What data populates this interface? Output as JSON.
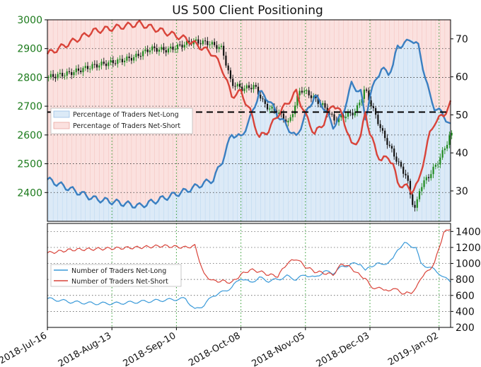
{
  "chart_data": [
    {
      "type": "line",
      "title": "US 500 Client Positioning",
      "price_axis": {
        "ylim": [
          2300,
          3000
        ],
        "ticks": [
          2400,
          2500,
          2600,
          2700,
          2800,
          2900,
          3000
        ],
        "color": "#1b7a1b"
      },
      "pct_axis": {
        "ylim": [
          22,
          75
        ],
        "ticks": [
          30,
          40,
          50,
          60,
          70
        ]
      },
      "reference_line": 50,
      "legend": {
        "placement": "center-left",
        "entries": [
          "Percentage of Traders Net-Long",
          "Percentage of Traders Net-Short"
        ]
      },
      "colors": {
        "net_long": "#3a7fc1",
        "net_short": "#d9443a",
        "long_fill": "#dceaf7",
        "short_fill": "#fbe1df",
        "candle_up": "#1f8a1f",
        "candle_down": "#111111",
        "grid": "#2e9a2e"
      },
      "price_range_days": [
        0,
        175
      ],
      "price_anchors": [
        [
          0,
          2800
        ],
        [
          10,
          2815
        ],
        [
          20,
          2840
        ],
        [
          30,
          2855
        ],
        [
          38,
          2870
        ],
        [
          45,
          2900
        ],
        [
          52,
          2895
        ],
        [
          58,
          2910
        ],
        [
          63,
          2925
        ],
        [
          70,
          2920
        ],
        [
          76,
          2900
        ],
        [
          80,
          2780
        ],
        [
          85,
          2760
        ],
        [
          90,
          2770
        ],
        [
          95,
          2700
        ],
        [
          100,
          2680
        ],
        [
          105,
          2640
        ],
        [
          110,
          2760
        ],
        [
          114,
          2740
        ],
        [
          120,
          2700
        ],
        [
          125,
          2650
        ],
        [
          130,
          2670
        ],
        [
          134,
          2680
        ],
        [
          138,
          2760
        ],
        [
          142,
          2680
        ],
        [
          146,
          2600
        ],
        [
          150,
          2540
        ],
        [
          154,
          2480
        ],
        [
          156,
          2460
        ],
        [
          158,
          2380
        ],
        [
          160,
          2340
        ],
        [
          162,
          2420
        ],
        [
          166,
          2460
        ],
        [
          170,
          2510
        ],
        [
          173,
          2560
        ],
        [
          175,
          2600
        ]
      ],
      "long_pct_anchors": [
        [
          0,
          33
        ],
        [
          20,
          28
        ],
        [
          40,
          26
        ],
        [
          60,
          30
        ],
        [
          72,
          33
        ],
        [
          76,
          38
        ],
        [
          80,
          45
        ],
        [
          84,
          44
        ],
        [
          88,
          49
        ],
        [
          92,
          56
        ],
        [
          96,
          54
        ],
        [
          100,
          50
        ],
        [
          104,
          47
        ],
        [
          108,
          44
        ],
        [
          112,
          50
        ],
        [
          116,
          55
        ],
        [
          120,
          52
        ],
        [
          124,
          47
        ],
        [
          128,
          50
        ],
        [
          132,
          58
        ],
        [
          136,
          56
        ],
        [
          138,
          49
        ],
        [
          140,
          55
        ],
        [
          143,
          60
        ],
        [
          145,
          62
        ],
        [
          148,
          61
        ],
        [
          150,
          63
        ],
        [
          152,
          68
        ],
        [
          156,
          69
        ],
        [
          158,
          70
        ],
        [
          161,
          68
        ],
        [
          164,
          60
        ],
        [
          166,
          55
        ],
        [
          168,
          52
        ],
        [
          172,
          50
        ],
        [
          175,
          47
        ]
      ],
      "short_pct_anchors": [
        [
          0,
          66
        ],
        [
          20,
          72
        ],
        [
          40,
          74
        ],
        [
          60,
          70
        ],
        [
          72,
          66
        ],
        [
          76,
          62
        ],
        [
          80,
          55
        ],
        [
          84,
          56
        ],
        [
          88,
          51
        ],
        [
          92,
          44
        ],
        [
          96,
          46
        ],
        [
          100,
          50
        ],
        [
          104,
          53
        ],
        [
          108,
          56
        ],
        [
          112,
          50
        ],
        [
          116,
          45
        ],
        [
          120,
          48
        ],
        [
          124,
          53
        ],
        [
          128,
          50
        ],
        [
          132,
          42
        ],
        [
          136,
          44
        ],
        [
          138,
          51
        ],
        [
          140,
          45
        ],
        [
          143,
          40
        ],
        [
          145,
          38
        ],
        [
          148,
          39
        ],
        [
          150,
          37
        ],
        [
          152,
          32
        ],
        [
          156,
          31
        ],
        [
          158,
          30
        ],
        [
          161,
          32
        ],
        [
          164,
          40
        ],
        [
          166,
          45
        ],
        [
          168,
          48
        ],
        [
          172,
          50
        ],
        [
          175,
          53
        ]
      ]
    },
    {
      "type": "line",
      "ylim": [
        200,
        1500
      ],
      "y_ticks": [
        200,
        400,
        600,
        800,
        1000,
        1200,
        1400
      ],
      "x_ticks": [
        "2018-Jul-16",
        "2018-Aug-13",
        "2018-Sep-10",
        "2018-Oct-08",
        "2018-Nov-05",
        "2018-Dec-03",
        "2019-Jan-02"
      ],
      "legend": {
        "placement": "center-left",
        "entries": [
          "Number of Traders Net-Long",
          "Number of Traders Net-Short"
        ]
      },
      "series": [
        {
          "name": "Number of Traders Net-Long",
          "color": "#3a9ad9",
          "anchors": [
            [
              0,
              560
            ],
            [
              10,
              520
            ],
            [
              20,
              500
            ],
            [
              30,
              500
            ],
            [
              40,
              520
            ],
            [
              50,
              540
            ],
            [
              60,
              560
            ],
            [
              64,
              420
            ],
            [
              68,
              480
            ],
            [
              72,
              600
            ],
            [
              76,
              640
            ],
            [
              80,
              700
            ],
            [
              84,
              820
            ],
            [
              88,
              760
            ],
            [
              92,
              820
            ],
            [
              96,
              780
            ],
            [
              100,
              800
            ],
            [
              104,
              840
            ],
            [
              108,
              800
            ],
            [
              112,
              860
            ],
            [
              116,
              820
            ],
            [
              120,
              900
            ],
            [
              124,
              880
            ],
            [
              128,
              960
            ],
            [
              132,
              990
            ],
            [
              136,
              1000
            ],
            [
              138,
              900
            ],
            [
              140,
              960
            ],
            [
              143,
              1000
            ],
            [
              145,
              980
            ],
            [
              148,
              1020
            ],
            [
              150,
              1050
            ],
            [
              152,
              1180
            ],
            [
              155,
              1250
            ],
            [
              158,
              1220
            ],
            [
              160,
              1200
            ],
            [
              162,
              1000
            ],
            [
              165,
              960
            ],
            [
              168,
              920
            ],
            [
              170,
              880
            ],
            [
              172,
              820
            ],
            [
              175,
              780
            ]
          ]
        },
        {
          "name": "Number of Traders Net-Short",
          "color": "#d9443a",
          "anchors": [
            [
              0,
              1130
            ],
            [
              10,
              1170
            ],
            [
              20,
              1180
            ],
            [
              30,
              1190
            ],
            [
              40,
              1200
            ],
            [
              50,
              1220
            ],
            [
              60,
              1200
            ],
            [
              64,
              1220
            ],
            [
              68,
              860
            ],
            [
              72,
              780
            ],
            [
              76,
              780
            ],
            [
              80,
              760
            ],
            [
              84,
              860
            ],
            [
              88,
              920
            ],
            [
              92,
              900
            ],
            [
              96,
              860
            ],
            [
              100,
              840
            ],
            [
              104,
              1000
            ],
            [
              108,
              1060
            ],
            [
              112,
              960
            ],
            [
              116,
              900
            ],
            [
              120,
              880
            ],
            [
              124,
              860
            ],
            [
              128,
              1000
            ],
            [
              132,
              940
            ],
            [
              136,
              840
            ],
            [
              138,
              820
            ],
            [
              140,
              720
            ],
            [
              143,
              680
            ],
            [
              145,
              700
            ],
            [
              148,
              640
            ],
            [
              150,
              700
            ],
            [
              152,
              660
            ],
            [
              155,
              620
            ],
            [
              158,
              640
            ],
            [
              160,
              680
            ],
            [
              162,
              820
            ],
            [
              165,
              900
            ],
            [
              168,
              1000
            ],
            [
              170,
              1200
            ],
            [
              172,
              1380
            ],
            [
              175,
              1440
            ]
          ]
        }
      ]
    }
  ]
}
